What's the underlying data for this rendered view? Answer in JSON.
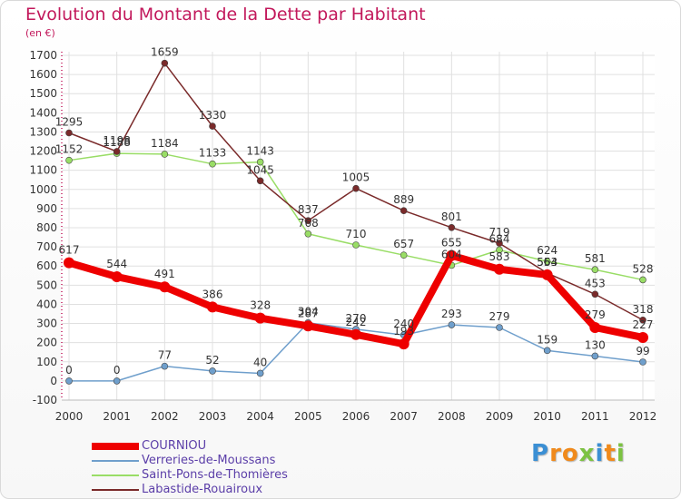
{
  "title": "Evolution du Montant de la Dette par Habitant",
  "subtitle": "(en €)",
  "logo_text": "Proxiti",
  "colors": {
    "title": "#c2185b",
    "axis_text": "#333333",
    "grid": "#e0e0e0",
    "legend_text": "#5b3ea8"
  },
  "chart_data": {
    "type": "line",
    "title": "Evolution du Montant de la Dette par Habitant",
    "ylabel": "(en €)",
    "xlabel": "",
    "x": [
      "2000",
      "2001",
      "2002",
      "2003",
      "2004",
      "2005",
      "2006",
      "2007",
      "2008",
      "2009",
      "2010",
      "2011",
      "2012"
    ],
    "ylim": [
      -100,
      1700
    ],
    "yticks": [
      -100,
      0,
      100,
      200,
      300,
      400,
      500,
      600,
      700,
      800,
      900,
      1000,
      1100,
      1200,
      1300,
      1400,
      1500,
      1600,
      1700
    ],
    "grid": true,
    "legend_position": "bottom-left",
    "series": [
      {
        "name": "COURNIOU",
        "color": "#ee0000",
        "width": 8,
        "marker": 6,
        "values": [
          617,
          544,
          491,
          386,
          328,
          287,
          242,
          193,
          655,
          583,
          554,
          279,
          227
        ],
        "labels": [
          "617",
          "544",
          "491",
          "386",
          "328",
          "287",
          "242",
          "193",
          "655",
          "583",
          "554",
          "279",
          "227"
        ]
      },
      {
        "name": "Verreries-de-Moussans",
        "color": "#6f9fcc",
        "width": 1.5,
        "marker": 3.5,
        "values": [
          0,
          0,
          77,
          52,
          40,
          304,
          270,
          240,
          293,
          279,
          159,
          130,
          99
        ],
        "labels": [
          "0",
          "0",
          "77",
          "52",
          "40",
          "304",
          "270",
          "240",
          "293",
          "279",
          "159",
          "130",
          "99"
        ]
      },
      {
        "name": "Saint-Pons-de-Thomières",
        "color": "#99dd66",
        "width": 1.5,
        "marker": 3.5,
        "values": [
          1152,
          1188,
          1184,
          1133,
          1143,
          768,
          710,
          657,
          604,
          684,
          624,
          581,
          528
        ],
        "labels": [
          "1152",
          "1188",
          "1184",
          "1133",
          "1143",
          "768",
          "710",
          "657",
          "604",
          "684",
          "624",
          "581",
          "528"
        ]
      },
      {
        "name": "Labastide-Rouairoux",
        "color": "#7a2a2a",
        "width": 1.5,
        "marker": 3.5,
        "values": [
          1295,
          1198,
          1659,
          1330,
          1045,
          837,
          1005,
          889,
          801,
          719,
          563,
          453,
          318
        ],
        "labels": [
          "1295",
          "1198",
          "1659",
          "1330",
          "1045",
          "837",
          "1005",
          "889",
          "801",
          "719",
          "563",
          "453",
          "318"
        ]
      }
    ]
  }
}
